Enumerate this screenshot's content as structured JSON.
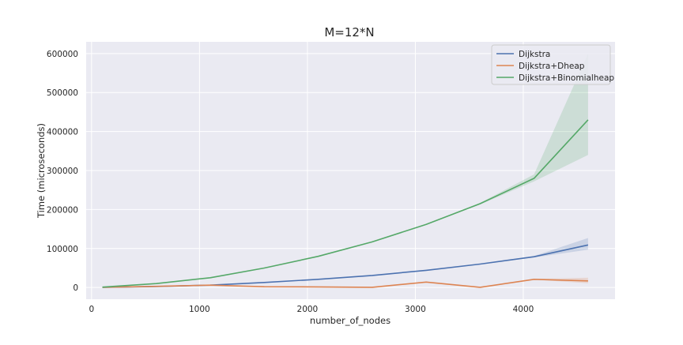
{
  "chart_data": {
    "type": "line",
    "title": "M=12*N",
    "xlabel": "number_of_nodes",
    "ylabel": "Time (microseconds)",
    "xlim": [
      -50,
      4850
    ],
    "ylim": [
      -30000,
      630000
    ],
    "xticks": [
      0,
      1000,
      2000,
      3000,
      4000
    ],
    "yticks": [
      0,
      100000,
      200000,
      300000,
      400000,
      500000,
      600000
    ],
    "grid": true,
    "legend": "top-right",
    "x": [
      100,
      600,
      1100,
      1600,
      2100,
      2600,
      3100,
      3600,
      4100,
      4600
    ],
    "series": [
      {
        "name": "Dijkstra",
        "color": "#4c72b0",
        "values": [
          500,
          2500,
          6000,
          13000,
          21000,
          31000,
          44000,
          60000,
          79000,
          109000
        ],
        "ci_low": [
          500,
          2500,
          6000,
          13000,
          21000,
          31000,
          44000,
          59000,
          77000,
          97000
        ],
        "ci_high": [
          500,
          2500,
          6000,
          13000,
          21000,
          31000,
          44000,
          61000,
          81000,
          127000
        ]
      },
      {
        "name": "Dijkstra+Dheap",
        "color": "#dd8452",
        "values": [
          300,
          3000,
          6000,
          2000,
          1500,
          500,
          14000,
          500,
          21000,
          17000
        ],
        "ci_low": [
          300,
          3000,
          6000,
          2000,
          1500,
          500,
          14000,
          500,
          20000,
          11000
        ],
        "ci_high": [
          300,
          3000,
          6000,
          2000,
          1500,
          500,
          14000,
          500,
          22000,
          25000
        ]
      },
      {
        "name": "Dijkstra+Binomialheap",
        "color": "#55a868",
        "values": [
          1000,
          10000,
          25000,
          50000,
          80000,
          117000,
          162000,
          215000,
          280000,
          430000
        ],
        "ci_low": [
          1000,
          10000,
          25000,
          50000,
          79000,
          116000,
          161000,
          213000,
          272000,
          340000
        ],
        "ci_high": [
          1000,
          10000,
          25000,
          50000,
          81000,
          118000,
          163000,
          217000,
          290000,
          600000
        ]
      }
    ]
  }
}
